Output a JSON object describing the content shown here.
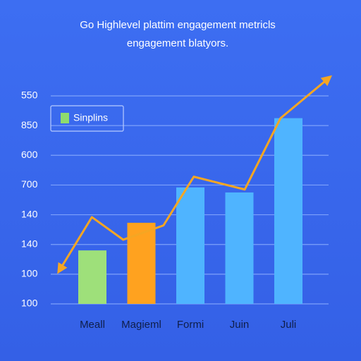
{
  "chart_data": {
    "type": "bar",
    "title": "Go Highlevel plattim engagement metricls",
    "subtitle": "engagement blatyors.",
    "categories": [
      "Meall",
      "Magieml",
      "Formi",
      "Juin",
      "Juli"
    ],
    "series": [
      {
        "name": "Sinplins",
        "colors": [
          "#9ee07a",
          "#ffa21f",
          "#4fb4ff",
          "#4fb4ff",
          "#4fb4ff"
        ],
        "legend_color": "#8fdc6e",
        "values": [
          1.8,
          2.73,
          3.92,
          3.75,
          6.25
        ]
      },
      {
        "type": "line",
        "color": "#f5a623",
        "x": [
          -0.66,
          -0.01,
          0.63,
          1.45,
          2.07,
          3.11,
          3.84,
          4.81
        ],
        "values": [
          1.16,
          2.92,
          2.16,
          2.64,
          4.28,
          3.85,
          6.25,
          7.58
        ]
      }
    ],
    "ylim": [
      0,
      7
    ],
    "yticks": [
      {
        "value": 0,
        "label": "100"
      },
      {
        "value": 1,
        "label": "100"
      },
      {
        "value": 2,
        "label": "140"
      },
      {
        "value": 3,
        "label": "140"
      },
      {
        "value": 4,
        "label": "700"
      },
      {
        "value": 5,
        "label": "600"
      },
      {
        "value": 6,
        "label": "850"
      },
      {
        "value": 7,
        "label": "550"
      }
    ],
    "grid": true,
    "legend": "upper left"
  }
}
